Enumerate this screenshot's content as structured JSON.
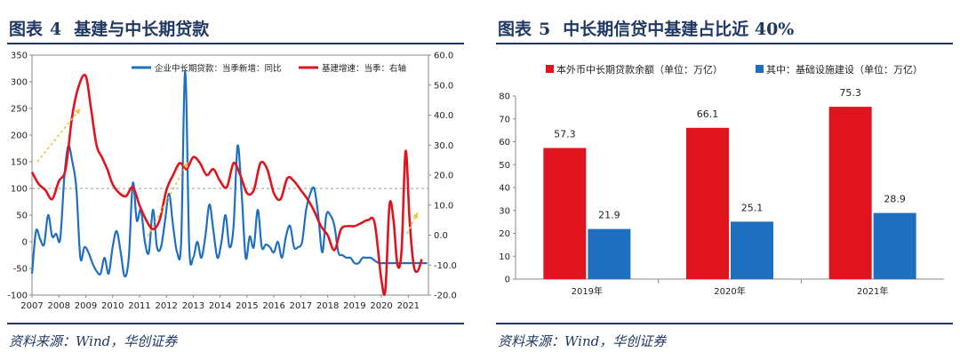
{
  "figure4": {
    "title_prefix": "图表",
    "title_number": "4",
    "title_text": "基建与中长期贷款",
    "source": "资料来源：Wind，华创证券"
  },
  "figure5": {
    "title_prefix": "图表",
    "title_number": "5",
    "title_text": "中长期信贷中基建占比近 40%",
    "source": "资料来源：Wind，华创证券"
  },
  "colors": {
    "blue": "#1f6fc0",
    "red": "#e0141e",
    "arrow": "#f5c242",
    "navy": "#1f3864"
  },
  "chart_data": [
    {
      "type": "line",
      "title": "基建与中长期贷款",
      "x_ticks": [
        "2007",
        "2008",
        "2009",
        "2010",
        "2011",
        "2012",
        "2013",
        "2014",
        "2015",
        "2016",
        "2017",
        "2018",
        "2019",
        "2020",
        "2021"
      ],
      "y_left_ticks": [
        "350",
        "300",
        "250",
        "200",
        "150",
        "100",
        "50",
        "0",
        "-50",
        "-100"
      ],
      "y_left_range": [
        -100,
        350
      ],
      "y_right_ticks": [
        "60.0",
        "50.0",
        "40.0",
        "30.0",
        "20.0",
        "10.0",
        "0.0",
        "-10.0",
        "-20.0"
      ],
      "y_right_range": [
        -20,
        60
      ],
      "reference_line": 100,
      "series": [
        {
          "name": "企业中长期贷款：当季新增：同比",
          "axis": "left",
          "color": "#1f6fc0",
          "x": [
            2007.0,
            2007.15,
            2007.3,
            2007.45,
            2007.6,
            2007.75,
            2007.9,
            2008.05,
            2008.2,
            2008.35,
            2008.5,
            2008.65,
            2008.8,
            2008.95,
            2009.1,
            2009.25,
            2009.4,
            2009.55,
            2009.7,
            2009.85,
            2010.0,
            2010.15,
            2010.3,
            2010.45,
            2010.6,
            2010.75,
            2010.9,
            2011.05,
            2011.2,
            2011.35,
            2011.5,
            2011.65,
            2011.8,
            2011.95,
            2012.1,
            2012.25,
            2012.4,
            2012.55,
            2012.7,
            2012.85,
            2013.0,
            2013.15,
            2013.3,
            2013.45,
            2013.6,
            2013.75,
            2013.9,
            2014.05,
            2014.2,
            2014.35,
            2014.5,
            2014.65,
            2014.8,
            2014.95,
            2015.1,
            2015.25,
            2015.4,
            2015.55,
            2015.7,
            2015.85,
            2016.0,
            2016.15,
            2016.3,
            2016.45,
            2016.6,
            2016.75,
            2016.9,
            2017.05,
            2017.2,
            2017.35,
            2017.5,
            2017.65,
            2017.8,
            2017.95,
            2018.1,
            2018.25,
            2018.4,
            2018.55,
            2018.7,
            2018.85,
            2019.0,
            2019.15,
            2019.3,
            2019.45,
            2019.6,
            2019.75,
            2019.9,
            2020.05,
            2020.2,
            2020.35,
            2020.5,
            2020.65,
            2020.8,
            2020.95,
            2021.1,
            2021.25,
            2021.4,
            2021.55,
            2021.7
          ],
          "values": [
            -60,
            20,
            5,
            -5,
            50,
            10,
            15,
            5,
            120,
            180,
            150,
            100,
            -30,
            -10,
            -20,
            -40,
            -55,
            -60,
            -30,
            -60,
            -10,
            20,
            -20,
            -65,
            -30,
            110,
            40,
            60,
            0,
            -20,
            60,
            -10,
            -10,
            40,
            90,
            30,
            -20,
            0,
            320,
            -10,
            -30,
            0,
            -30,
            10,
            70,
            20,
            -30,
            0,
            50,
            -10,
            30,
            180,
            90,
            -30,
            10,
            -10,
            60,
            -10,
            -5,
            -10,
            -20,
            0,
            -30,
            10,
            30,
            -10,
            -10,
            0,
            60,
            90,
            100,
            50,
            -20,
            50,
            50,
            30,
            -20,
            -25,
            -30,
            -30,
            -40,
            -40,
            -30,
            -30,
            -30,
            -35,
            -40,
            -40,
            -40,
            -40,
            -40,
            -40,
            -40,
            -40,
            -40,
            -40,
            -40,
            -40,
            -40
          ]
        },
        {
          "name": "基建增速：当季：右轴",
          "axis": "right",
          "color": "#e0141e",
          "x": [
            2007.0,
            2007.25,
            2007.5,
            2007.75,
            2008.0,
            2008.25,
            2008.5,
            2008.75,
            2009.0,
            2009.2,
            2009.4,
            2009.6,
            2009.8,
            2010.0,
            2010.25,
            2010.5,
            2010.75,
            2011.0,
            2011.25,
            2011.5,
            2011.75,
            2012.0,
            2012.25,
            2012.5,
            2012.75,
            2013.0,
            2013.25,
            2013.5,
            2013.75,
            2014.0,
            2014.25,
            2014.5,
            2014.75,
            2015.0,
            2015.25,
            2015.5,
            2015.75,
            2016.0,
            2016.25,
            2016.5,
            2016.75,
            2017.0,
            2017.25,
            2017.5,
            2017.75,
            2018.0,
            2018.25,
            2018.5,
            2018.75,
            2019.0,
            2019.25,
            2019.5,
            2019.75,
            2020.0,
            2020.15,
            2020.3,
            2020.45,
            2020.6,
            2020.75,
            2020.9,
            2021.05,
            2021.2,
            2021.35,
            2021.5
          ],
          "values": [
            21,
            17,
            15,
            12,
            18,
            22,
            40,
            50,
            53,
            42,
            30,
            26,
            22,
            17,
            14,
            13,
            16,
            10,
            5,
            2,
            5,
            15,
            20,
            24,
            22,
            26,
            24,
            20,
            22,
            18,
            16,
            24,
            20,
            14,
            15,
            24,
            22,
            14,
            12,
            19,
            18,
            15,
            12,
            8,
            3,
            0,
            -5,
            2,
            3,
            3,
            4,
            5,
            4,
            -15,
            -18,
            10,
            5,
            -10,
            -5,
            28,
            5,
            -10,
            -12,
            -8
          ]
        }
      ],
      "annotations": [
        "upward trend arrow 2007-2009",
        "upward trend arrow 2011-2013",
        "upward trend arrow 2020-2021"
      ]
    },
    {
      "type": "bar",
      "title": "中长期信贷中基建占比近 40%",
      "categories": [
        "2019年",
        "2020年",
        "2021年"
      ],
      "ylim": [
        0,
        80
      ],
      "y_ticks": [
        "80",
        "70",
        "60",
        "50",
        "40",
        "30",
        "20",
        "10",
        "0"
      ],
      "series": [
        {
          "name": "本外币中长期贷款余额（单位：万亿）",
          "color": "#e0141e",
          "values": [
            57.3,
            66.1,
            75.3
          ],
          "labels": [
            "57.3",
            "66.1",
            "75.3"
          ]
        },
        {
          "name": "其中：基础设施建设（单位：万亿）",
          "color": "#1f6fc0",
          "values": [
            21.9,
            25.1,
            28.9
          ],
          "labels": [
            "21.9",
            "25.1",
            "28.9"
          ]
        }
      ]
    }
  ]
}
